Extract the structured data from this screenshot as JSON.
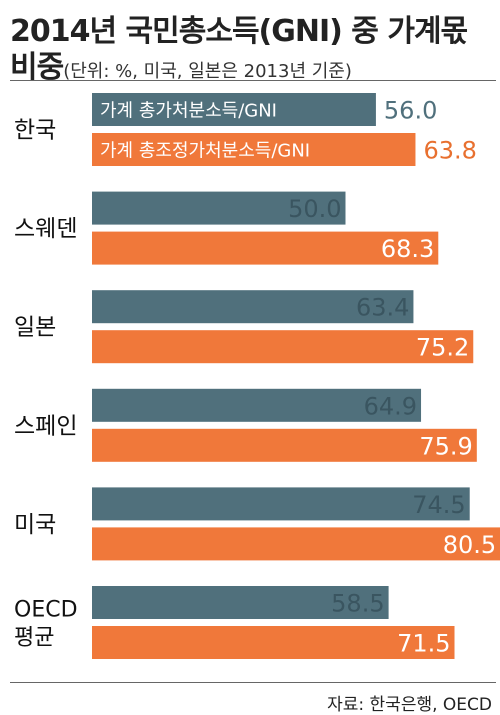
{
  "title_line1": "2014년 국민총소득(GNI) 중 가계몫",
  "title_line2_bold": "비중",
  "title_line2_note": "(단위: %, 미국, 일본은 2013년 기준)",
  "source": "자료: 한국은행, OECD",
  "chart_data": {
    "type": "bar",
    "orientation": "horizontal",
    "categories": [
      "한국",
      "스웨덴",
      "일본",
      "스페인",
      "미국",
      "OECD 평균"
    ],
    "category_lines": [
      [
        "한국"
      ],
      [
        "스웨덴"
      ],
      [
        "일본"
      ],
      [
        "스페인"
      ],
      [
        "미국"
      ],
      [
        "OECD",
        "평균"
      ]
    ],
    "series": [
      {
        "name": "가계 총가처분소득/GNI",
        "color": "#50707c",
        "values": [
          56.0,
          50.0,
          63.4,
          64.9,
          74.5,
          58.5
        ]
      },
      {
        "name": "가계 총조정가처분소득/GNI",
        "color": "#f0783a",
        "values": [
          63.8,
          68.3,
          75.2,
          75.9,
          80.5,
          71.5
        ]
      }
    ],
    "value_format": "0.0",
    "legend": "inside-first-group",
    "grid": false,
    "xlim": [
      0,
      90
    ]
  }
}
